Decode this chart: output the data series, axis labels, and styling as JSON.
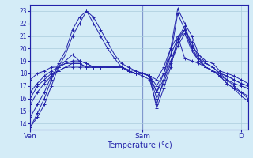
{
  "xlabel": "Température (°c)",
  "bg_color": "#d4ecf7",
  "grid_color": "#aaccdd",
  "line_color": "#2222aa",
  "marker": "+",
  "ylim": [
    13.5,
    23.5
  ],
  "yticks": [
    14,
    15,
    16,
    17,
    18,
    19,
    20,
    21,
    22,
    23
  ],
  "xtick_labels": [
    "Ven",
    "Sam",
    "D"
  ],
  "xtick_positions": [
    0,
    16,
    30
  ],
  "n_points": 32,
  "series": [
    [
      13.7,
      14.5,
      15.5,
      17.0,
      18.5,
      19.5,
      21.0,
      22.0,
      23.0,
      22.5,
      21.5,
      20.5,
      19.5,
      18.8,
      18.5,
      18.2,
      18.0,
      17.8,
      16.5,
      18.0,
      20.0,
      23.2,
      22.0,
      21.0,
      19.5,
      18.8,
      18.5,
      18.0,
      17.5,
      17.0,
      16.5,
      16.0
    ],
    [
      13.7,
      14.8,
      16.0,
      17.5,
      18.8,
      19.8,
      21.5,
      22.5,
      23.0,
      22.0,
      21.0,
      20.0,
      19.2,
      18.5,
      18.2,
      18.0,
      17.8,
      17.5,
      15.5,
      17.5,
      19.5,
      22.8,
      21.5,
      20.5,
      19.2,
      18.5,
      18.2,
      17.8,
      17.2,
      16.8,
      16.2,
      15.8
    ],
    [
      14.5,
      15.5,
      16.5,
      17.8,
      18.5,
      19.0,
      19.5,
      19.0,
      18.8,
      18.5,
      18.5,
      18.5,
      18.5,
      18.5,
      18.3,
      18.2,
      18.0,
      17.8,
      15.2,
      16.8,
      18.5,
      20.8,
      21.5,
      20.0,
      19.0,
      18.5,
      18.2,
      17.8,
      17.2,
      16.8,
      16.5,
      16.2
    ],
    [
      15.5,
      16.5,
      17.2,
      17.8,
      18.2,
      18.5,
      18.8,
      18.8,
      18.5,
      18.5,
      18.5,
      18.5,
      18.5,
      18.5,
      18.2,
      18.0,
      18.0,
      17.8,
      16.0,
      17.2,
      18.8,
      20.2,
      21.2,
      19.8,
      19.0,
      18.5,
      18.2,
      17.8,
      17.5,
      17.2,
      17.0,
      16.8
    ],
    [
      16.0,
      17.0,
      17.5,
      18.0,
      18.2,
      18.5,
      18.5,
      18.5,
      18.5,
      18.5,
      18.5,
      18.5,
      18.5,
      18.5,
      18.2,
      18.0,
      18.0,
      17.8,
      16.5,
      17.5,
      19.0,
      20.5,
      21.5,
      20.0,
      19.2,
      18.8,
      18.5,
      18.0,
      17.8,
      17.5,
      17.2,
      17.0
    ],
    [
      16.5,
      17.2,
      17.8,
      18.2,
      18.5,
      18.8,
      18.8,
      18.8,
      18.5,
      18.5,
      18.5,
      18.5,
      18.5,
      18.5,
      18.2,
      18.0,
      18.0,
      17.8,
      17.0,
      18.0,
      19.5,
      20.8,
      21.8,
      20.2,
      19.5,
      19.0,
      18.8,
      18.2,
      18.0,
      17.8,
      17.5,
      17.2
    ],
    [
      17.5,
      18.0,
      18.2,
      18.5,
      18.5,
      18.8,
      19.0,
      19.0,
      18.8,
      18.5,
      18.5,
      18.5,
      18.5,
      18.5,
      18.2,
      18.0,
      18.0,
      17.8,
      17.5,
      18.5,
      20.0,
      21.0,
      19.2,
      19.0,
      18.8,
      18.5,
      18.2,
      18.0,
      17.8,
      17.5,
      17.2,
      17.0
    ]
  ]
}
